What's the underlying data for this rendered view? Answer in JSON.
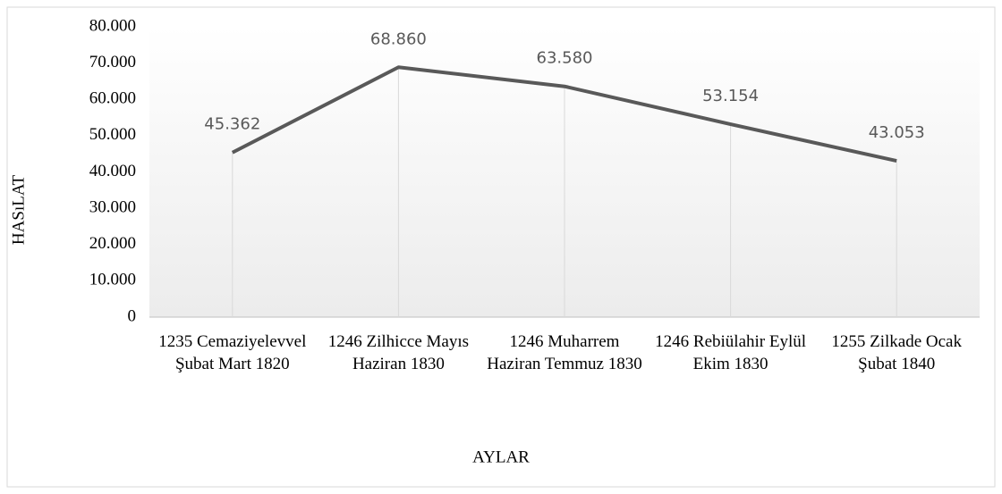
{
  "chart_data": {
    "type": "line",
    "x_label": "AYLAR",
    "y_label": "HASıLAT",
    "categories": [
      "1235 Cemaziyelevvel Şubat Mart 1820",
      "1246 Zilhicce Mayıs Haziran 1830",
      "1246 Muharrem Haziran Temmuz 1830",
      "1246 Rebiülahir Eylül Ekim 1830",
      "1255 Zilkade Ocak Şubat 1840"
    ],
    "values": [
      45362,
      68860,
      63580,
      53154,
      43053
    ],
    "value_labels": [
      "45.362",
      "68.860",
      "63.580",
      "53.154",
      "43.053"
    ],
    "color": "#595959",
    "ylim": [
      0,
      80000
    ],
    "yticks": [
      0,
      {
        "value": 10000,
        "label": "10.000"
      },
      {
        "value": 20000,
        "label": "20.000"
      },
      {
        "value": 30000,
        "label": "30.000"
      },
      {
        "value": 40000,
        "label": "40.000"
      },
      {
        "value": 50000,
        "label": "50.000"
      },
      {
        "value": 60000,
        "label": "60.000"
      },
      {
        "value": 70000,
        "label": "70.000"
      },
      {
        "value": 80000,
        "label": "80.000"
      }
    ],
    "drop_lines": true
  }
}
